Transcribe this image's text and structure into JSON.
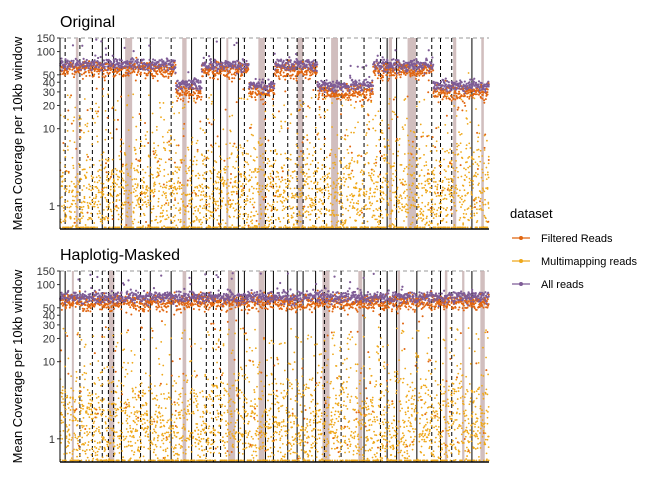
{
  "chart_data": {
    "type": "scatter",
    "y_scale": "log",
    "legend": {
      "title": "dataset",
      "placement": "right",
      "entries": [
        {
          "label": "Filtered Reads",
          "color": "#E1650F"
        },
        {
          "label": "Multimapping reads",
          "color": "#EFA81A"
        },
        {
          "label": "All reads",
          "color": "#7E5C96"
        }
      ]
    },
    "colors": {
      "filtered": "#E1650F",
      "multimapping": "#EFA81A",
      "all_reads": "#7E5C96",
      "highlight_band": "#C9B3B3",
      "boundary_line": "#000000"
    },
    "panels": [
      {
        "title": "Original",
        "ylabel": "Mean Coverage per 10kb window",
        "ylim": [
          0.5,
          150
        ],
        "yticks": [
          1,
          10,
          20,
          30,
          40,
          50,
          100,
          150
        ],
        "hline": 150,
        "segments": [
          {
            "start": 0.0,
            "end": 0.27,
            "all": 68,
            "filtered": 58
          },
          {
            "start": 0.27,
            "end": 0.33,
            "all": 38,
            "filtered": 30
          },
          {
            "start": 0.33,
            "end": 0.44,
            "all": 66,
            "filtered": 56
          },
          {
            "start": 0.44,
            "end": 0.5,
            "all": 36,
            "filtered": 29
          },
          {
            "start": 0.5,
            "end": 0.6,
            "all": 66,
            "filtered": 56
          },
          {
            "start": 0.6,
            "end": 0.73,
            "all": 36,
            "filtered": 29
          },
          {
            "start": 0.73,
            "end": 0.87,
            "all": 66,
            "filtered": 56
          },
          {
            "start": 0.87,
            "end": 1.0,
            "all": 36,
            "filtered": 29
          }
        ]
      },
      {
        "title": "Haplotig-Masked",
        "ylabel": "Mean Coverage per 10kb window",
        "ylim": [
          0.5,
          150
        ],
        "yticks": [
          1,
          10,
          20,
          30,
          40,
          50,
          100,
          150
        ],
        "hline": 150,
        "segments": [
          {
            "start": 0.0,
            "end": 1.0,
            "all": 68,
            "filtered": 58
          }
        ]
      }
    ]
  }
}
